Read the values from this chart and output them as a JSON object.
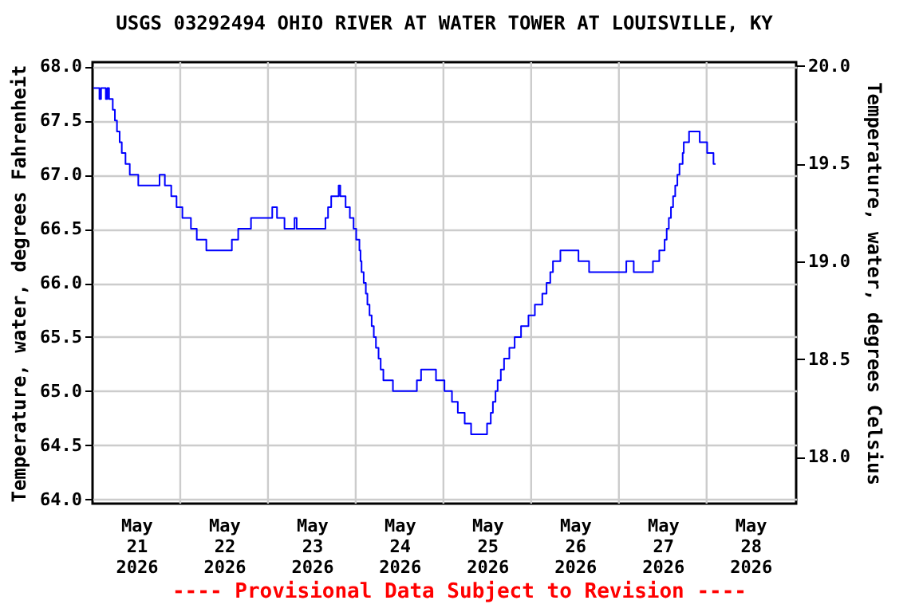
{
  "chart_data": {
    "type": "step",
    "title": "USGS 03292494 OHIO RIVER AT WATER TOWER AT LOUISVILLE, KY",
    "ylabel": "Temperature, water, degrees Fahrenheit",
    "y2label": "Temperature, water, degrees Celsius",
    "annotations": [
      "---- Provisional Data Subject to Revision ----"
    ],
    "x": [
      "2026-05-21T00:15",
      "2026-05-21T01:53",
      "2026-05-21T02:20",
      "2026-05-21T03:38",
      "2026-05-21T04:04",
      "2026-05-21T04:31",
      "2026-05-21T05:32",
      "2026-05-21T06:07",
      "2026-05-21T06:41",
      "2026-05-21T07:25",
      "2026-05-21T08:00",
      "2026-05-21T09:01",
      "2026-05-21T10:11",
      "2026-05-21T12:31",
      "2026-05-21T18:20",
      "2026-05-21T19:47",
      "2026-05-21T21:32",
      "2026-05-21T22:59",
      "2026-05-22T00:35",
      "2026-05-22T02:55",
      "2026-05-22T04:31",
      "2026-05-22T07:08",
      "2026-05-22T14:07",
      "2026-05-22T15:51",
      "2026-05-22T19:21",
      "2026-05-23T01:10",
      "2026-05-23T02:28",
      "2026-05-23T04:31",
      "2026-05-23T07:16",
      "2026-05-23T07:51",
      "2026-05-23T15:43",
      "2026-05-23T16:26",
      "2026-05-23T17:18",
      "2026-05-23T19:20",
      "2026-05-23T19:47",
      "2026-05-23T21:14",
      "2026-05-23T22:24",
      "2026-05-23T23:25",
      "2026-05-24T00:08",
      "2026-05-24T01:01",
      "2026-05-24T01:19",
      "2026-05-24T01:36",
      "2026-05-24T02:11",
      "2026-05-24T02:46",
      "2026-05-24T03:12",
      "2026-05-24T03:47",
      "2026-05-24T04:22",
      "2026-05-24T04:57",
      "2026-05-24T05:32",
      "2026-05-24T06:15",
      "2026-05-24T06:50",
      "2026-05-24T07:34",
      "2026-05-24T10:11",
      "2026-05-24T16:44",
      "2026-05-24T17:53",
      "2026-05-24T21:58",
      "2026-05-25T00:17",
      "2026-05-25T02:20",
      "2026-05-25T03:56",
      "2026-05-25T05:49",
      "2026-05-25T07:34",
      "2026-05-25T11:56",
      "2026-05-25T12:57",
      "2026-05-25T13:32",
      "2026-05-25T14:15",
      "2026-05-25T14:50",
      "2026-05-25T15:42",
      "2026-05-25T16:35",
      "2026-05-25T18:02",
      "2026-05-25T19:29",
      "2026-05-25T21:14",
      "2026-05-25T23:16",
      "2026-05-26T01:01",
      "2026-05-26T03:03",
      "2026-05-26T04:13",
      "2026-05-26T05:14",
      "2026-05-26T05:58",
      "2026-05-26T08:00",
      "2026-05-26T12:57",
      "2026-05-26T15:51",
      "2026-05-27T02:02",
      "2026-05-27T04:04",
      "2026-05-27T09:19",
      "2026-05-27T11:03",
      "2026-05-27T12:31",
      "2026-05-27T13:05",
      "2026-05-27T13:40",
      "2026-05-27T14:15",
      "2026-05-27T14:50",
      "2026-05-27T15:25",
      "2026-05-27T16:00",
      "2026-05-27T16:35",
      "2026-05-27T17:27",
      "2026-05-27T17:45",
      "2026-05-27T19:12",
      "2026-05-27T22:07",
      "2026-05-28T00:09",
      "2026-05-28T01:53",
      "2026-05-28T02:28"
    ],
    "series": [
      {
        "color": "#0000ff",
        "values": [
          67.8,
          67.7,
          67.8,
          67.7,
          67.8,
          67.7,
          67.6,
          67.5,
          67.4,
          67.3,
          67.2,
          67.1,
          67.0,
          66.9,
          67.0,
          66.9,
          66.8,
          66.7,
          66.6,
          66.5,
          66.4,
          66.3,
          66.4,
          66.5,
          66.6,
          66.7,
          66.6,
          66.5,
          66.6,
          66.5,
          66.6,
          66.7,
          66.8,
          66.9,
          66.8,
          66.7,
          66.6,
          66.5,
          66.4,
          66.3,
          66.2,
          66.1,
          66.0,
          65.9,
          65.8,
          65.7,
          65.6,
          65.5,
          65.4,
          65.3,
          65.2,
          65.1,
          65.0,
          65.1,
          65.2,
          65.1,
          65.0,
          64.9,
          64.8,
          64.7,
          64.6,
          64.7,
          64.8,
          64.9,
          65.0,
          65.1,
          65.2,
          65.3,
          65.4,
          65.5,
          65.6,
          65.7,
          65.8,
          65.9,
          66.0,
          66.1,
          66.2,
          66.3,
          66.2,
          66.1,
          66.2,
          66.1,
          66.2,
          66.3,
          66.4,
          66.5,
          66.6,
          66.7,
          66.8,
          66.9,
          67.0,
          67.1,
          67.2,
          67.3,
          67.4,
          67.3,
          67.2,
          67.1,
          67.1
        ]
      }
    ],
    "xlim": [
      "2026-05-21T00:00",
      "2026-05-29T00:30"
    ],
    "xticks": [
      {
        "value": "2026-05-21T12:00",
        "label": "May\n21\n2026"
      },
      {
        "value": "2026-05-22T00:00",
        "label": null
      },
      {
        "value": "2026-05-22T12:00",
        "label": "May\n22\n2026"
      },
      {
        "value": "2026-05-23T00:00",
        "label": null
      },
      {
        "value": "2026-05-23T12:00",
        "label": "May\n23\n2026"
      },
      {
        "value": "2026-05-24T00:00",
        "label": null
      },
      {
        "value": "2026-05-24T12:00",
        "label": "May\n24\n2026"
      },
      {
        "value": "2026-05-25T00:00",
        "label": null
      },
      {
        "value": "2026-05-25T12:00",
        "label": "May\n25\n2026"
      },
      {
        "value": "2026-05-26T00:00",
        "label": null
      },
      {
        "value": "2026-05-26T12:00",
        "label": "May\n26\n2026"
      },
      {
        "value": "2026-05-27T00:00",
        "label": null
      },
      {
        "value": "2026-05-27T12:00",
        "label": "May\n27\n2026"
      },
      {
        "value": "2026-05-28T00:00",
        "label": null
      },
      {
        "value": "2026-05-28T12:00",
        "label": "May\n28\n2026"
      }
    ],
    "ylim": [
      63.96,
      68.04
    ],
    "yticks": [
      {
        "value": 64,
        "label": "64.0"
      },
      {
        "value": 64.5,
        "label": "64.5"
      },
      {
        "value": 65,
        "label": "65.0"
      },
      {
        "value": 65.5,
        "label": "65.5"
      },
      {
        "value": 66,
        "label": "66.0"
      },
      {
        "value": 66.5,
        "label": "66.5"
      },
      {
        "value": 67,
        "label": "67.0"
      },
      {
        "value": 67.5,
        "label": "67.5"
      },
      {
        "value": 68,
        "label": "68.0"
      }
    ],
    "y2lim": [
      17.76,
      20.02
    ],
    "y2ticks": [
      {
        "value": 18,
        "label": "18.0"
      },
      {
        "value": 18.5,
        "label": "18.5"
      },
      {
        "value": 19,
        "label": "19.0"
      },
      {
        "value": 19.5,
        "label": "19.5"
      },
      {
        "value": 20,
        "label": "20.0"
      }
    ],
    "grid": true
  }
}
